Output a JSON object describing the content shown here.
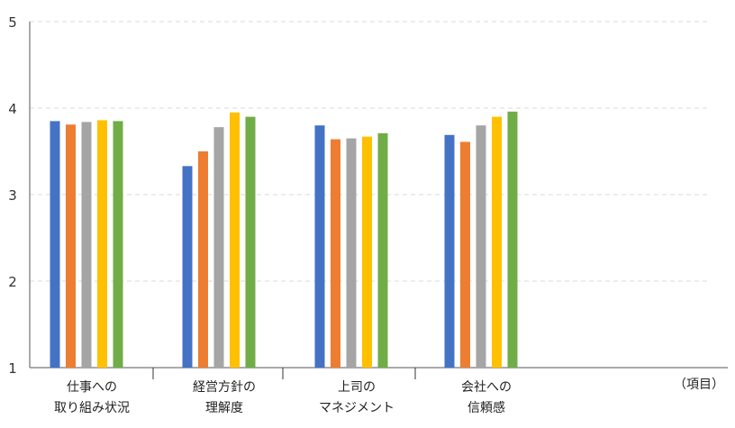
{
  "chart_data": {
    "type": "bar",
    "categories": [
      [
        "仕事への",
        "取り組み状況"
      ],
      [
        "経営方針の",
        "理解度"
      ],
      [
        "上司の",
        "マネジメント"
      ],
      [
        "会社への",
        "信頼感"
      ]
    ],
    "series": [
      {
        "color": "#4472C4",
        "values": [
          3.85,
          3.33,
          3.8,
          3.69
        ]
      },
      {
        "color": "#ED7D31",
        "values": [
          3.81,
          3.5,
          3.64,
          3.61
        ]
      },
      {
        "color": "#A5A5A5",
        "values": [
          3.84,
          3.78,
          3.65,
          3.8
        ]
      },
      {
        "color": "#FFC000",
        "values": [
          3.86,
          3.95,
          3.67,
          3.9
        ]
      },
      {
        "color": "#70AD47",
        "values": [
          3.85,
          3.9,
          3.71,
          3.96
        ]
      }
    ],
    "yticks": [
      1,
      2,
      3,
      4,
      5
    ],
    "ylim": [
      1,
      5
    ],
    "x_unit_label": "（項目）",
    "grid": true
  }
}
